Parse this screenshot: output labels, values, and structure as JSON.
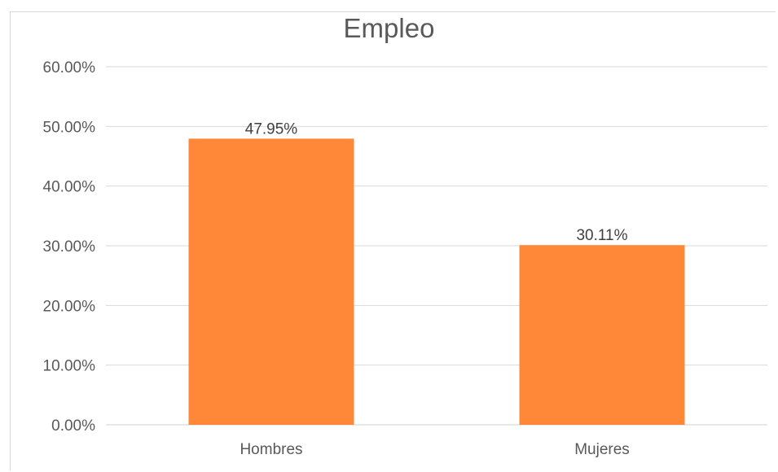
{
  "chart_data": {
    "type": "bar",
    "title": "Empleo",
    "categories": [
      "Hombres",
      "Mujeres"
    ],
    "values": [
      47.95,
      30.11
    ],
    "data_labels": [
      "47.95%",
      "30.11%"
    ],
    "ylim": [
      0,
      60
    ],
    "yticks": [
      0,
      10,
      20,
      30,
      40,
      50,
      60
    ],
    "ytick_labels": [
      "0.00%",
      "10.00%",
      "20.00%",
      "30.00%",
      "40.00%",
      "50.00%",
      "60.00%"
    ],
    "xlabel": "",
    "ylabel": "",
    "grid": true,
    "legend": "none",
    "bar_color": "#FF8838"
  }
}
